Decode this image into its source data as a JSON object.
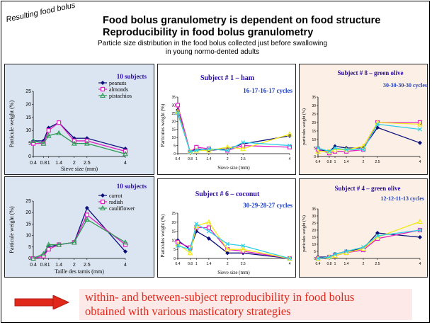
{
  "slide": {
    "corner_label": "Resulting food bolus",
    "title_line1": "Food bolus granulometry is dependent on food structure",
    "title_line2": "Reproducibility in food bolus granulometry",
    "subtitle_line1": "Particle size distribution in the food bolus collected just before swallowing",
    "subtitle_line2": "in young normo-dented adults",
    "conclusion_line1": "within- and between-subject reproducibility in food bolus",
    "conclusion_line2": "obtained with various masticatory strategies",
    "colors": {
      "arrow": "#e0291b",
      "conclusion": "#e0291b",
      "blue_panel": "#dbe5f1",
      "peach_panel": "#fbefe6",
      "subtitle_blue": "#1f3fbf",
      "subject_title": "#2a0aa8"
    }
  },
  "chart_data": [
    {
      "id": "c1",
      "type": "line",
      "heading": "10 subjects",
      "xlabel": "Sieve size  (mm)",
      "ylabel": "Particule weight (%)",
      "ylim": [
        0,
        25
      ],
      "yticks": [
        "0",
        "5",
        "10",
        "15",
        "20",
        "25"
      ],
      "xticks": [
        "0.4",
        "0.8",
        "1",
        "1.4",
        "2",
        "2.5",
        "4"
      ],
      "x": [
        0.4,
        0.8,
        1,
        1.4,
        2,
        2.5,
        4
      ],
      "series": [
        {
          "name": "peanuts",
          "color": "#0b0f7a",
          "marker": "diamond",
          "values": [
            6,
            6,
            11,
            13,
            7,
            7,
            3
          ]
        },
        {
          "name": "almonds",
          "color": "#e020c0",
          "marker": "square",
          "values": [
            5,
            5,
            10,
            13,
            6,
            6,
            2
          ]
        },
        {
          "name": "pistachios",
          "color": "#2e9a55",
          "marker": "triangle",
          "values": [
            6,
            5,
            8,
            9,
            5,
            5,
            1
          ]
        }
      ]
    },
    {
      "id": "c2",
      "type": "line",
      "heading": "10 subjects",
      "xlabel": "Taille des tamis (mm)",
      "ylabel": "Particule weight (%)",
      "ylim": [
        0,
        25
      ],
      "yticks": [
        "0",
        "5",
        "10",
        "15",
        "20",
        "25"
      ],
      "xticks": [
        "0.4",
        "0.8",
        "1",
        "1.4",
        "2",
        "2.5",
        "4"
      ],
      "x": [
        0.4,
        0.8,
        1,
        1.4,
        2,
        2.5,
        4
      ],
      "series": [
        {
          "name": "carrot",
          "color": "#0b0f7a",
          "marker": "diamond",
          "values": [
            0,
            1,
            5,
            6,
            7,
            22,
            3
          ]
        },
        {
          "name": "radish",
          "color": "#e020c0",
          "marker": "square",
          "values": [
            0,
            1,
            4,
            6,
            7,
            19,
            6
          ]
        },
        {
          "name": "cauliflower",
          "color": "#2e9a55",
          "marker": "triangle",
          "values": [
            0,
            2,
            6,
            6,
            7,
            17,
            7
          ]
        }
      ]
    },
    {
      "id": "c3",
      "type": "line",
      "heading": "Subject # 1 – ham",
      "cycles": "16-17-16-17 cycles",
      "xlabel": "Sieve size (mm)",
      "ylabel": "Particules weight (%)",
      "ylim": [
        0,
        35
      ],
      "yticks": [
        "0",
        "5",
        "10",
        "15",
        "20",
        "25",
        "30",
        "35"
      ],
      "xticks": [
        "0.4",
        "0.8",
        "1",
        "1.4",
        "2",
        "2.5",
        "4"
      ],
      "x": [
        0.4,
        0.8,
        1,
        1.4,
        2,
        2.5,
        4
      ],
      "series": [
        {
          "name": "",
          "color": "#0b0f7a",
          "marker": "diamond",
          "values": [
            27,
            1,
            3,
            2,
            3,
            6,
            11
          ]
        },
        {
          "name": "",
          "color": "#e020c0",
          "marker": "square",
          "values": [
            30,
            1,
            4,
            3,
            2,
            5,
            4
          ]
        },
        {
          "name": "",
          "color": "#f2ea1c",
          "marker": "triangle",
          "values": [
            26,
            1,
            2,
            2,
            4,
            3,
            12
          ]
        },
        {
          "name": "",
          "color": "#2ccfe6",
          "marker": "cross",
          "values": [
            25,
            1,
            2,
            3,
            2,
            7,
            5
          ]
        }
      ]
    },
    {
      "id": "c4",
      "type": "line",
      "heading": "Subject # 8 – green olive",
      "cycles": "30-30-30-30 cycles",
      "xlabel": "",
      "ylabel": "particules weight (%)",
      "ylim": [
        0,
        35
      ],
      "yticks": [
        "0",
        "5",
        "10",
        "15",
        "20",
        "25",
        "30",
        "35"
      ],
      "xticks": [
        "0.4",
        "0.8",
        "1",
        "1.4",
        "2",
        "2.5",
        "4"
      ],
      "x": [
        0.4,
        0.8,
        1,
        1.4,
        2,
        2.5,
        4
      ],
      "series": [
        {
          "name": "",
          "color": "#0b0f7a",
          "marker": "diamond",
          "values": [
            4,
            3,
            6,
            5,
            5,
            17,
            8
          ]
        },
        {
          "name": "",
          "color": "#e020c0",
          "marker": "square",
          "values": [
            4,
            2,
            3,
            3,
            4,
            20,
            20
          ]
        },
        {
          "name": "",
          "color": "#f2ea1c",
          "marker": "triangle",
          "values": [
            3,
            3,
            4,
            4,
            6,
            20,
            19
          ]
        },
        {
          "name": "",
          "color": "#2ccfe6",
          "marker": "cross",
          "values": [
            5,
            3,
            5,
            4,
            4,
            19,
            16
          ]
        }
      ]
    },
    {
      "id": "c5",
      "type": "line",
      "heading": "Subject # 6 – coconut",
      "cycles": "30-29-28-27 cycles",
      "xlabel": "Sieve size (mm)",
      "ylabel": "Particules weight (%)",
      "ylim": [
        0,
        25
      ],
      "yticks": [
        "0",
        "5",
        "10",
        "15",
        "20",
        "25"
      ],
      "xticks": [
        "0.4",
        "0.8",
        "1",
        "1.4",
        "2",
        "2.5",
        "4"
      ],
      "x": [
        0.4,
        0.8,
        1,
        1.4,
        2,
        2.5,
        4
      ],
      "series": [
        {
          "name": "",
          "color": "#0b0f7a",
          "marker": "diamond",
          "values": [
            10,
            5,
            15,
            11,
            3,
            3,
            0
          ]
        },
        {
          "name": "",
          "color": "#e020c0",
          "marker": "square",
          "values": [
            9,
            6,
            17,
            17,
            5,
            4,
            0
          ]
        },
        {
          "name": "",
          "color": "#f2ea1c",
          "marker": "triangle",
          "values": [
            8,
            3,
            18,
            20,
            5,
            5,
            0
          ]
        },
        {
          "name": "",
          "color": "#2ccfe6",
          "marker": "cross",
          "values": [
            7,
            5,
            19,
            15,
            8,
            7,
            0
          ]
        }
      ]
    },
    {
      "id": "c6",
      "type": "line",
      "heading": "Subject # 4 – green olive",
      "cycles": "12-12-11-13 cycles",
      "xlabel": "",
      "ylabel": "particules weight (%)",
      "ylim": [
        0,
        35
      ],
      "yticks": [
        "0",
        "5",
        "10",
        "15",
        "20",
        "25",
        "30",
        "35"
      ],
      "xticks": [
        "0.4",
        "0.8",
        "1",
        "1.4",
        "2",
        "2.5",
        "4"
      ],
      "x": [
        0.4,
        0.8,
        1,
        1.4,
        2,
        2.5,
        4
      ],
      "series": [
        {
          "name": "",
          "color": "#0b0f7a",
          "marker": "diamond",
          "values": [
            1,
            1,
            3,
            5,
            7,
            18,
            15
          ]
        },
        {
          "name": "",
          "color": "#e020c0",
          "marker": "square",
          "values": [
            0,
            1,
            2,
            4,
            6,
            14,
            20
          ]
        },
        {
          "name": "",
          "color": "#f2ea1c",
          "marker": "triangle",
          "values": [
            0,
            1,
            2,
            4,
            7,
            15,
            26
          ]
        },
        {
          "name": "",
          "color": "#2ccfe6",
          "marker": "cross",
          "values": [
            0,
            1,
            3,
            5,
            8,
            16,
            20
          ]
        }
      ]
    }
  ]
}
